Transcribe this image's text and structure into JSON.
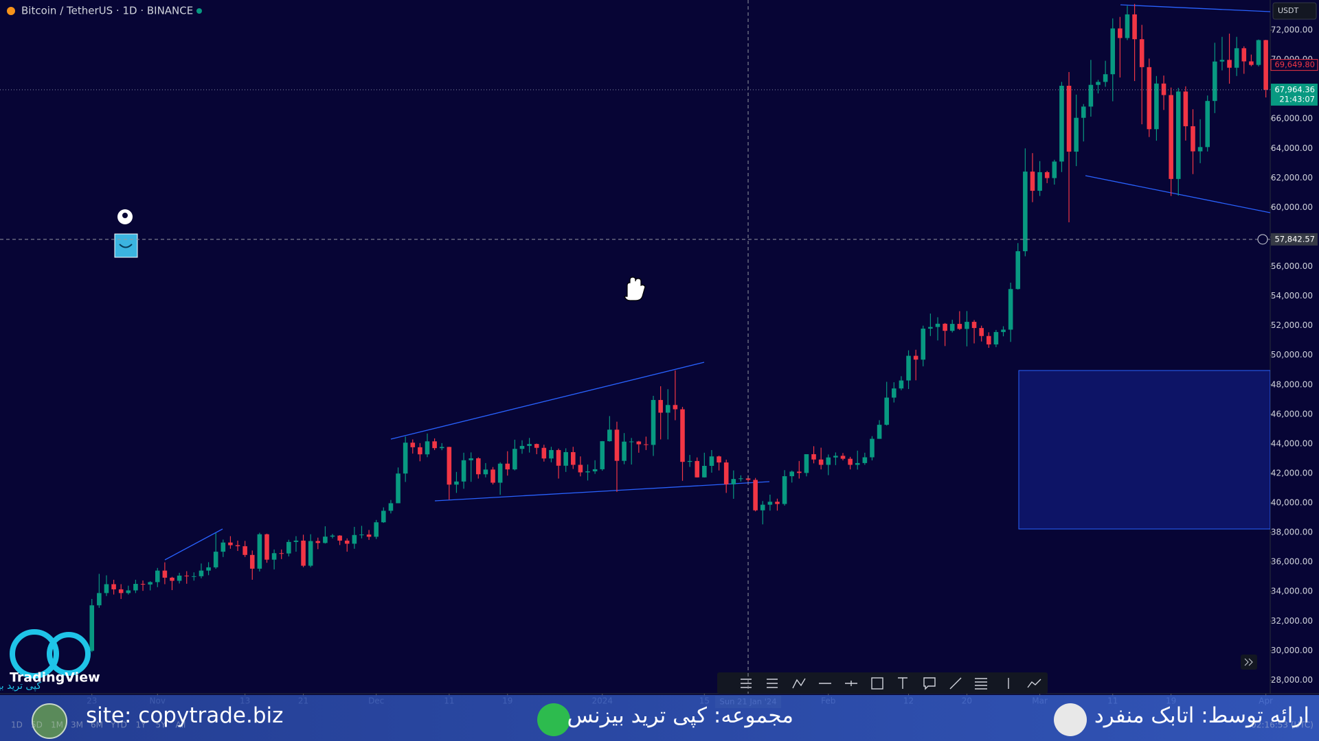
{
  "chart_data": {
    "type": "candlestick",
    "title": "Bitcoin / TetherUS · 1D · BINANCE",
    "currency": "USDT",
    "up_color": "#089981",
    "down_color": "#f23645",
    "grid": false,
    "x": [
      0,
      1,
      2,
      3,
      4,
      5,
      6,
      7,
      8,
      9,
      10,
      11,
      12,
      13,
      14,
      15,
      16,
      17,
      18,
      19,
      20,
      21,
      22,
      23,
      24,
      25,
      26,
      27,
      28,
      29,
      30,
      31,
      32,
      33,
      34,
      35,
      36,
      37,
      38,
      39,
      40,
      41,
      42,
      43,
      44,
      45,
      46,
      47,
      48,
      49,
      50,
      51,
      52,
      53,
      54,
      55,
      56,
      57,
      58,
      59,
      60,
      61,
      62,
      63,
      64,
      65,
      66,
      67,
      68,
      69,
      70,
      71,
      72,
      73,
      74,
      75,
      76,
      77,
      78,
      79,
      80,
      81,
      82,
      83,
      84,
      85,
      86,
      87,
      88,
      89,
      90,
      91,
      92,
      93,
      94,
      95,
      96,
      97,
      98,
      99,
      100,
      101,
      102,
      103,
      104,
      105,
      106,
      107,
      108,
      109,
      110,
      111,
      112,
      113,
      114,
      115,
      116,
      117,
      118,
      119,
      120,
      121,
      122,
      123,
      124,
      125,
      126,
      127,
      128,
      129,
      130,
      131,
      132,
      133,
      134,
      135,
      136,
      137,
      138,
      139,
      140,
      141,
      142,
      143,
      144,
      145,
      146,
      147,
      148,
      149,
      150,
      151,
      152,
      153,
      154,
      155,
      156,
      157,
      158,
      159,
      160,
      161
    ],
    "candles": [
      [
        29990,
        33500,
        29900,
        33070
      ],
      [
        33070,
        35200,
        32900,
        33900
      ],
      [
        33900,
        35100,
        33700,
        34500
      ],
      [
        34500,
        34800,
        33800,
        34150
      ],
      [
        34150,
        34500,
        33500,
        33900
      ],
      [
        33900,
        34400,
        33800,
        34080
      ],
      [
        34080,
        34800,
        33900,
        34520
      ],
      [
        34520,
        34750,
        34050,
        34480
      ],
      [
        34480,
        34700,
        34080,
        34640
      ],
      [
        34640,
        35600,
        34300,
        35420
      ],
      [
        35420,
        35980,
        34500,
        34940
      ],
      [
        34940,
        35000,
        34100,
        34730
      ],
      [
        34730,
        35270,
        34550,
        35080
      ],
      [
        35080,
        35380,
        34530,
        35040
      ],
      [
        35040,
        35300,
        34740,
        35040
      ],
      [
        35040,
        35900,
        34900,
        35420
      ],
      [
        35420,
        35990,
        35110,
        35640
      ],
      [
        35640,
        37970,
        35540,
        36700
      ],
      [
        36700,
        37520,
        36340,
        37320
      ],
      [
        37320,
        37750,
        36900,
        37140
      ],
      [
        37140,
        37450,
        36750,
        37070
      ],
      [
        37070,
        37430,
        36340,
        36480
      ],
      [
        36480,
        36780,
        34800,
        35550
      ],
      [
        35550,
        37980,
        35360,
        37880
      ],
      [
        37880,
        37920,
        35950,
        36160
      ],
      [
        36160,
        36850,
        35500,
        36600
      ],
      [
        36600,
        36850,
        36200,
        36580
      ],
      [
        36580,
        37510,
        36380,
        37360
      ],
      [
        37360,
        37750,
        36700,
        37450
      ],
      [
        37450,
        37850,
        35650,
        35750
      ],
      [
        35750,
        37880,
        35650,
        37420
      ],
      [
        37420,
        37650,
        36870,
        37290
      ],
      [
        37290,
        38420,
        37250,
        37720
      ],
      [
        37720,
        37900,
        37600,
        37790
      ],
      [
        37790,
        37820,
        37150,
        37450
      ],
      [
        37450,
        37600,
        36700,
        37240
      ],
      [
        37240,
        38380,
        36900,
        37830
      ],
      [
        37830,
        38450,
        37600,
        37860
      ],
      [
        37860,
        38170,
        37500,
        37710
      ],
      [
        37710,
        38850,
        37560,
        38690
      ],
      [
        38690,
        39700,
        38650,
        39470
      ],
      [
        39470,
        40200,
        39290,
        39980
      ],
      [
        39980,
        42400,
        39980,
        41990
      ],
      [
        41990,
        44490,
        41420,
        44080
      ],
      [
        44080,
        44300,
        43340,
        43770
      ],
      [
        43770,
        44050,
        42820,
        43290
      ],
      [
        43290,
        44700,
        43100,
        44170
      ],
      [
        44170,
        44370,
        43580,
        43710
      ],
      [
        43710,
        44050,
        43570,
        43790
      ],
      [
        43790,
        43800,
        40220,
        41240
      ],
      [
        41240,
        42100,
        40680,
        41450
      ],
      [
        41450,
        43400,
        40960,
        42890
      ],
      [
        42890,
        43420,
        41430,
        43020
      ],
      [
        43020,
        43090,
        41650,
        41940
      ],
      [
        41940,
        42700,
        41730,
        42260
      ],
      [
        42260,
        42430,
        41250,
        41370
      ],
      [
        41370,
        42750,
        40550,
        42660
      ],
      [
        42660,
        43500,
        41850,
        42270
      ],
      [
        42270,
        44280,
        42200,
        43660
      ],
      [
        43660,
        44240,
        43330,
        43860
      ],
      [
        43860,
        44400,
        43410,
        43990
      ],
      [
        43990,
        44020,
        43300,
        43730
      ],
      [
        43730,
        43940,
        42800,
        43010
      ],
      [
        43010,
        43800,
        42750,
        43580
      ],
      [
        43580,
        43680,
        41650,
        42520
      ],
      [
        42520,
        43700,
        42100,
        43440
      ],
      [
        43440,
        43800,
        42300,
        42580
      ],
      [
        42580,
        43150,
        41800,
        42070
      ],
      [
        42070,
        42600,
        41520,
        42140
      ],
      [
        42140,
        42890,
        41970,
        42280
      ],
      [
        42280,
        44190,
        42180,
        44180
      ],
      [
        44180,
        45880,
        44150,
        44960
      ],
      [
        44960,
        45500,
        40750,
        42850
      ],
      [
        42850,
        44730,
        42620,
        44150
      ],
      [
        44150,
        44400,
        42600,
        44160
      ],
      [
        44160,
        44200,
        43400,
        43970
      ],
      [
        43970,
        44490,
        43580,
        43930
      ],
      [
        43930,
        47250,
        43180,
        46970
      ],
      [
        46970,
        47900,
        44300,
        46110
      ],
      [
        46110,
        47700,
        44300,
        46630
      ],
      [
        46630,
        48970,
        45600,
        46340
      ],
      [
        46340,
        46500,
        41500,
        42780
      ],
      [
        42780,
        43250,
        42440,
        42840
      ],
      [
        42840,
        43080,
        41720,
        41730
      ],
      [
        41730,
        43400,
        41720,
        42510
      ],
      [
        42510,
        43580,
        42050,
        43150
      ],
      [
        43150,
        43200,
        42200,
        42740
      ],
      [
        42740,
        42930,
        40680,
        41260
      ],
      [
        41260,
        42200,
        40280,
        41620
      ],
      [
        41620,
        41870,
        41450,
        41660
      ],
      [
        41660,
        41870,
        41450,
        41560
      ],
      [
        41560,
        41690,
        39430,
        39500
      ],
      [
        39500,
        40130,
        38550,
        39880
      ],
      [
        39880,
        40560,
        39480,
        40080
      ],
      [
        40080,
        40290,
        39480,
        39930
      ],
      [
        39930,
        42220,
        39820,
        41810
      ],
      [
        41810,
        42190,
        41380,
        42120
      ],
      [
        42120,
        42840,
        41650,
        42030
      ],
      [
        42030,
        43300,
        41800,
        43300
      ],
      [
        43300,
        43840,
        42680,
        42940
      ],
      [
        42940,
        43740,
        42270,
        42580
      ],
      [
        42580,
        43280,
        41880,
        43080
      ],
      [
        43080,
        43420,
        42560,
        43190
      ],
      [
        43190,
        43380,
        42880,
        42990
      ],
      [
        42990,
        43120,
        42270,
        42580
      ],
      [
        42580,
        43540,
        42260,
        42700
      ],
      [
        42700,
        43400,
        42580,
        43090
      ],
      [
        43090,
        44520,
        42880,
        44340
      ],
      [
        44340,
        45600,
        44340,
        45290
      ],
      [
        45290,
        48200,
        45240,
        47130
      ],
      [
        47130,
        48170,
        46800,
        47750
      ],
      [
        47750,
        48580,
        47630,
        48290
      ],
      [
        48290,
        50330,
        47710,
        49960
      ],
      [
        49960,
        50370,
        48300,
        49700
      ],
      [
        49700,
        52000,
        49250,
        51800
      ],
      [
        51800,
        52820,
        51300,
        51910
      ],
      [
        51910,
        52570,
        51000,
        52130
      ],
      [
        52130,
        52180,
        50620,
        51650
      ],
      [
        51650,
        52400,
        51540,
        52120
      ],
      [
        52120,
        52980,
        51710,
        51780
      ],
      [
        51780,
        52990,
        50600,
        52260
      ],
      [
        52260,
        52380,
        50800,
        51840
      ],
      [
        51840,
        52000,
        50930,
        51300
      ],
      [
        51300,
        51550,
        50500,
        50730
      ],
      [
        50730,
        51710,
        50550,
        51570
      ],
      [
        51570,
        51960,
        51280,
        51730
      ],
      [
        51730,
        54910,
        50900,
        54480
      ],
      [
        54480,
        57590,
        54440,
        57040
      ],
      [
        57040,
        64000,
        56700,
        62430
      ],
      [
        62430,
        63680,
        60360,
        61130
      ],
      [
        61130,
        63140,
        60780,
        62390
      ],
      [
        62390,
        62480,
        61650,
        61990
      ],
      [
        61990,
        63230,
        61550,
        63110
      ],
      [
        63110,
        68500,
        62400,
        68240
      ],
      [
        68240,
        69170,
        59000,
        63780
      ],
      [
        63780,
        67640,
        62800,
        66070
      ],
      [
        66070,
        67000,
        64470,
        66830
      ],
      [
        66830,
        69990,
        66150,
        68300
      ],
      [
        68300,
        68640,
        67720,
        68500
      ],
      [
        68500,
        69930,
        68170,
        69020
      ],
      [
        69020,
        72800,
        67190,
        72120
      ],
      [
        72120,
        72900,
        68800,
        71470
      ],
      [
        71470,
        73650,
        71330,
        73070
      ],
      [
        73070,
        73780,
        68560,
        71390
      ],
      [
        71390,
        72360,
        65630,
        69500
      ],
      [
        69500,
        70080,
        64770,
        65300
      ],
      [
        65300,
        68900,
        64520,
        68390
      ],
      [
        68390,
        68930,
        66600,
        67610
      ],
      [
        67610,
        68120,
        60780,
        61930
      ],
      [
        61930,
        68100,
        60800,
        67850
      ],
      [
        67850,
        68200,
        64530,
        65500
      ],
      [
        65500,
        66650,
        62260,
        63800
      ],
      [
        63800,
        65970,
        63000,
        64090
      ],
      [
        64090,
        67580,
        63790,
        67210
      ],
      [
        67210,
        71150,
        66390,
        69880
      ],
      [
        69880,
        71550,
        69280,
        69990
      ],
      [
        69990,
        71770,
        68380,
        69460
      ],
      [
        69460,
        71550,
        68900,
        70780
      ],
      [
        70780,
        70910,
        69050,
        69890
      ],
      [
        69890,
        70350,
        69560,
        69650
      ],
      [
        69650,
        71370,
        69550,
        71330
      ],
      [
        71330,
        71350,
        67450,
        67964.36
      ]
    ],
    "xlim": [
      -12.6,
      161.6
    ],
    "xticks": [
      {
        "value": 0,
        "label": "23"
      },
      {
        "value": 9,
        "label": "Nov"
      },
      {
        "value": 21,
        "label": "13"
      },
      {
        "value": 29,
        "label": "21"
      },
      {
        "value": 39,
        "label": "Dec"
      },
      {
        "value": 49,
        "label": "11"
      },
      {
        "value": 57,
        "label": "19"
      },
      {
        "value": 70,
        "label": "2024"
      },
      {
        "value": 84,
        "label": "15"
      },
      {
        "value": 101,
        "label": "Feb"
      },
      {
        "value": 112,
        "label": "12"
      },
      {
        "value": 120,
        "label": "20"
      },
      {
        "value": 130,
        "label": "Mar"
      },
      {
        "value": 140,
        "label": "11"
      },
      {
        "value": 148,
        "label": "19"
      },
      {
        "value": 161,
        "label": "Apr"
      }
    ],
    "ylim": [
      27090,
      74045
    ],
    "yticks": [
      {
        "value": 28000,
        "label": "28,000.00"
      },
      {
        "value": 30000,
        "label": "30,000.00"
      },
      {
        "value": 32000,
        "label": "32,000.00"
      },
      {
        "value": 34000,
        "label": "34,000.00"
      },
      {
        "value": 36000,
        "label": "36,000.00"
      },
      {
        "value": 38000,
        "label": "38,000.00"
      },
      {
        "value": 40000,
        "label": "40,000.00"
      },
      {
        "value": 42000,
        "label": "42,000.00"
      },
      {
        "value": 44000,
        "label": "44,000.00"
      },
      {
        "value": 46000,
        "label": "46,000.00"
      },
      {
        "value": 48000,
        "label": "48,000.00"
      },
      {
        "value": 50000,
        "label": "50,000.00"
      },
      {
        "value": 52000,
        "label": "52,000.00"
      },
      {
        "value": 54000,
        "label": "54,000.00"
      },
      {
        "value": 56000,
        "label": "56,000.00"
      },
      {
        "value": 58000,
        "label": "58,000.00"
      },
      {
        "value": 60000,
        "label": "60,000.00"
      },
      {
        "value": 62000,
        "label": "62,000.00"
      },
      {
        "value": 64000,
        "label": "64,000.00"
      },
      {
        "value": 66000,
        "label": "66,000.00"
      },
      {
        "value": 68000,
        "label": "68,000.00"
      },
      {
        "value": 70000,
        "label": "70,000.00"
      },
      {
        "value": 72000,
        "label": "72,000.00"
      }
    ],
    "last_price": {
      "value": 67964.36,
      "label": "67,964.36"
    },
    "countdown": "21:43:07",
    "alert_price": {
      "value": 69649.8,
      "label": "69,649.80"
    },
    "crosshair": {
      "x": {
        "value": 90,
        "label": "Sun 21 Jan '24"
      },
      "y": {
        "value": 57842.57,
        "label": "57,842.57"
      }
    }
  },
  "timeframes": [
    "1D",
    "5D",
    "1M",
    "3M",
    "6M",
    "YTD",
    "1Y",
    "5Y",
    "All"
  ],
  "clock": "02:16:53 (UTC)",
  "logo": {
    "brand": "TradingView",
    "watermark": "کپی ترید بیزنس"
  },
  "banner": {
    "site": "site: copytrade.biz",
    "collection": "مجموعه: کپی ترید بیزنس",
    "presenter": "ارائه توسط: اتابک منفرد"
  }
}
